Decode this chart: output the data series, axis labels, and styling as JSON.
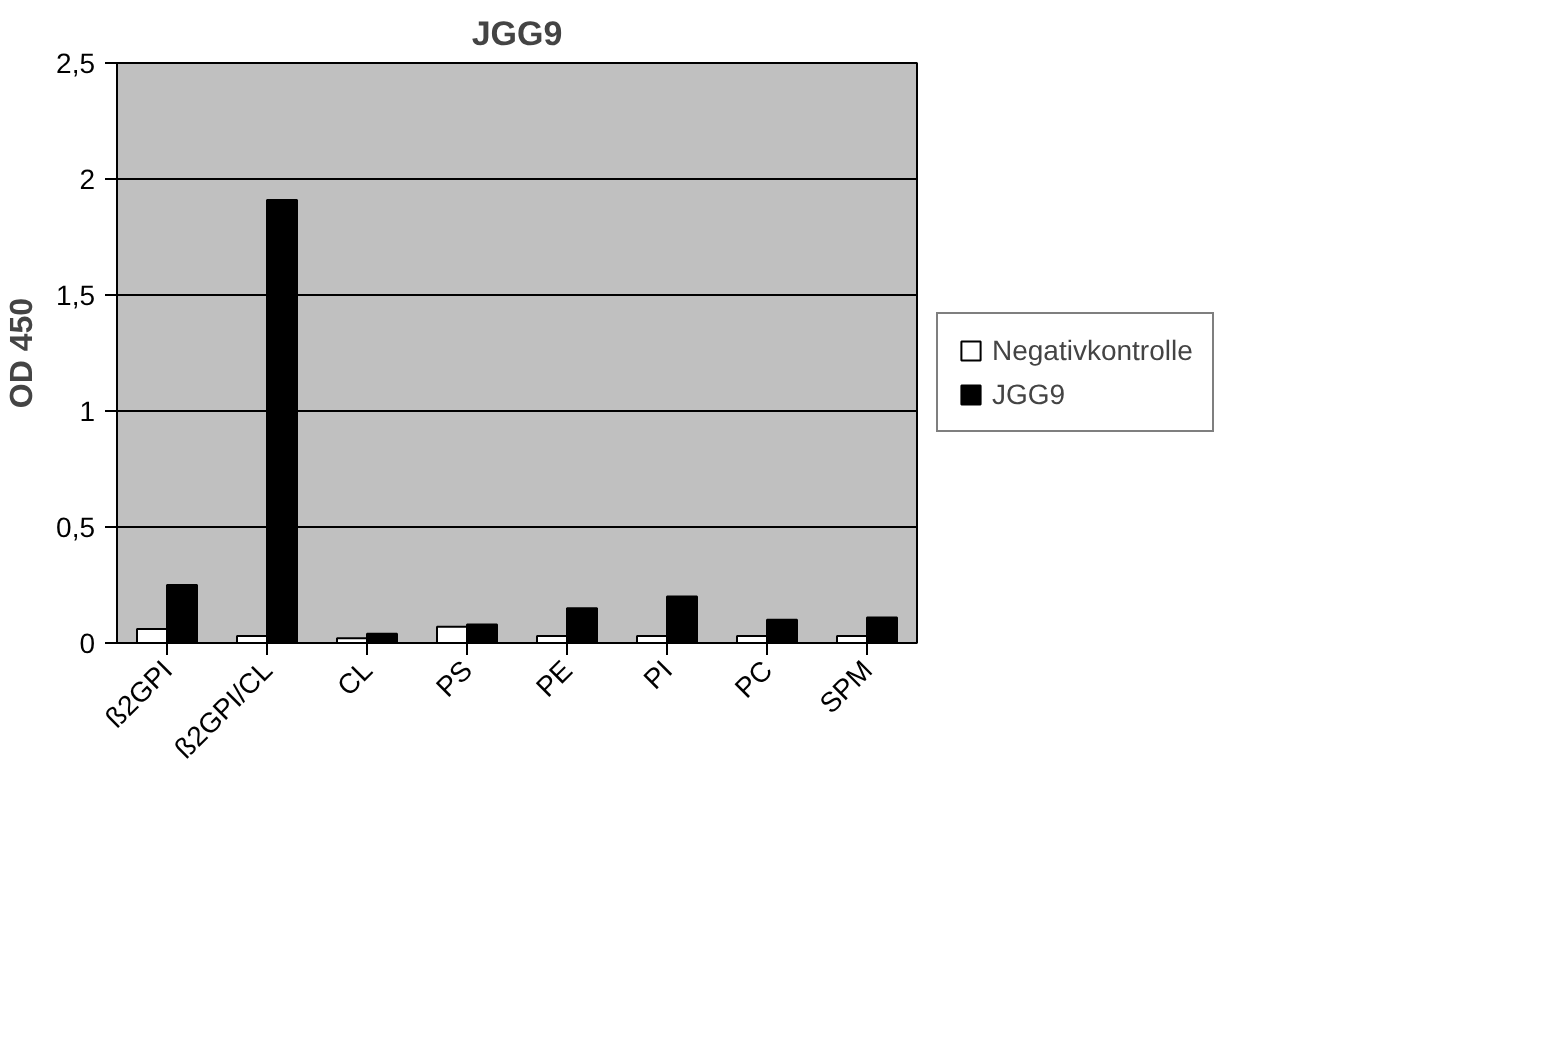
{
  "chart_data": {
    "type": "bar",
    "title": "JGG9",
    "ylabel": "OD 450",
    "categories": [
      "ß2GPI",
      "ß2GPI/CL",
      "CL",
      "PS",
      "PE",
      "PI",
      "PC",
      "SPM"
    ],
    "series": [
      {
        "name": "Negativkontrolle",
        "color": "#ffffff",
        "values": [
          0.06,
          0.03,
          0.02,
          0.07,
          0.03,
          0.03,
          0.03,
          0.03
        ]
      },
      {
        "name": "JGG9",
        "color": "#000000",
        "values": [
          0.25,
          1.91,
          0.04,
          0.08,
          0.15,
          0.2,
          0.1,
          0.11
        ]
      }
    ],
    "ylim": [
      0,
      2.5
    ],
    "yticks": [
      0,
      {
        "value": 0.5,
        "label": "0,5"
      },
      1,
      {
        "value": 1.5,
        "label": "1,5"
      },
      2,
      {
        "value": 2.5,
        "label": "2,5"
      }
    ],
    "grid": "y",
    "legend": "right"
  }
}
